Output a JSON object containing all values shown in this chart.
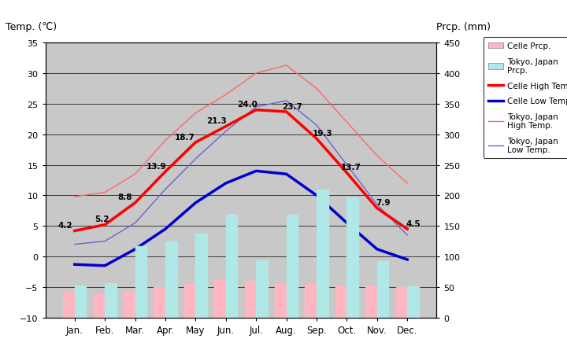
{
  "months": [
    "Jan.",
    "Feb.",
    "Mar.",
    "Apr.",
    "May",
    "Jun.",
    "Jul.",
    "Aug.",
    "Sep.",
    "Oct.",
    "Nov.",
    "Dec."
  ],
  "celle_high_temp": [
    4.2,
    5.2,
    8.8,
    13.9,
    18.7,
    21.3,
    24.0,
    23.7,
    19.3,
    13.7,
    7.9,
    4.5
  ],
  "celle_low_temp": [
    -1.3,
    -1.5,
    1.2,
    4.5,
    8.8,
    12.0,
    14.0,
    13.5,
    10.0,
    5.5,
    1.2,
    -0.5
  ],
  "tokyo_high_temp": [
    9.8,
    10.5,
    13.5,
    19.0,
    23.5,
    26.5,
    30.0,
    31.3,
    27.5,
    22.0,
    16.5,
    12.0
  ],
  "tokyo_low_temp": [
    2.0,
    2.5,
    5.5,
    11.0,
    16.0,
    20.5,
    24.5,
    25.5,
    21.5,
    15.0,
    8.5,
    3.5
  ],
  "celle_prcp_mm": [
    43,
    38,
    44,
    50,
    55,
    62,
    60,
    57,
    55,
    52,
    52,
    50
  ],
  "tokyo_prcp_mm": [
    52,
    56,
    117,
    125,
    138,
    168,
    94,
    168,
    210,
    197,
    93,
    51
  ],
  "celle_high_color": "#ff0000",
  "celle_low_color": "#0000cc",
  "tokyo_high_color": "#ff6666",
  "tokyo_low_color": "#6666cc",
  "celle_prcp_color": "#ffb6c1",
  "tokyo_prcp_color": "#b0e8e8",
  "bg_color": "#c8c8c8",
  "title_left": "Temp. (℃)",
  "title_right": "Prcp. (mm)",
  "ylim_temp": [
    -10,
    35
  ],
  "ylim_prcp": [
    0,
    450
  ],
  "yticks_temp": [
    -10,
    -5,
    0,
    5,
    10,
    15,
    20,
    25,
    30,
    35
  ],
  "yticks_prcp": [
    0,
    50,
    100,
    150,
    200,
    250,
    300,
    350,
    400,
    450
  ],
  "celle_high_labels": [
    true,
    true,
    true,
    true,
    true,
    true,
    true,
    true,
    true,
    true,
    true,
    true
  ]
}
